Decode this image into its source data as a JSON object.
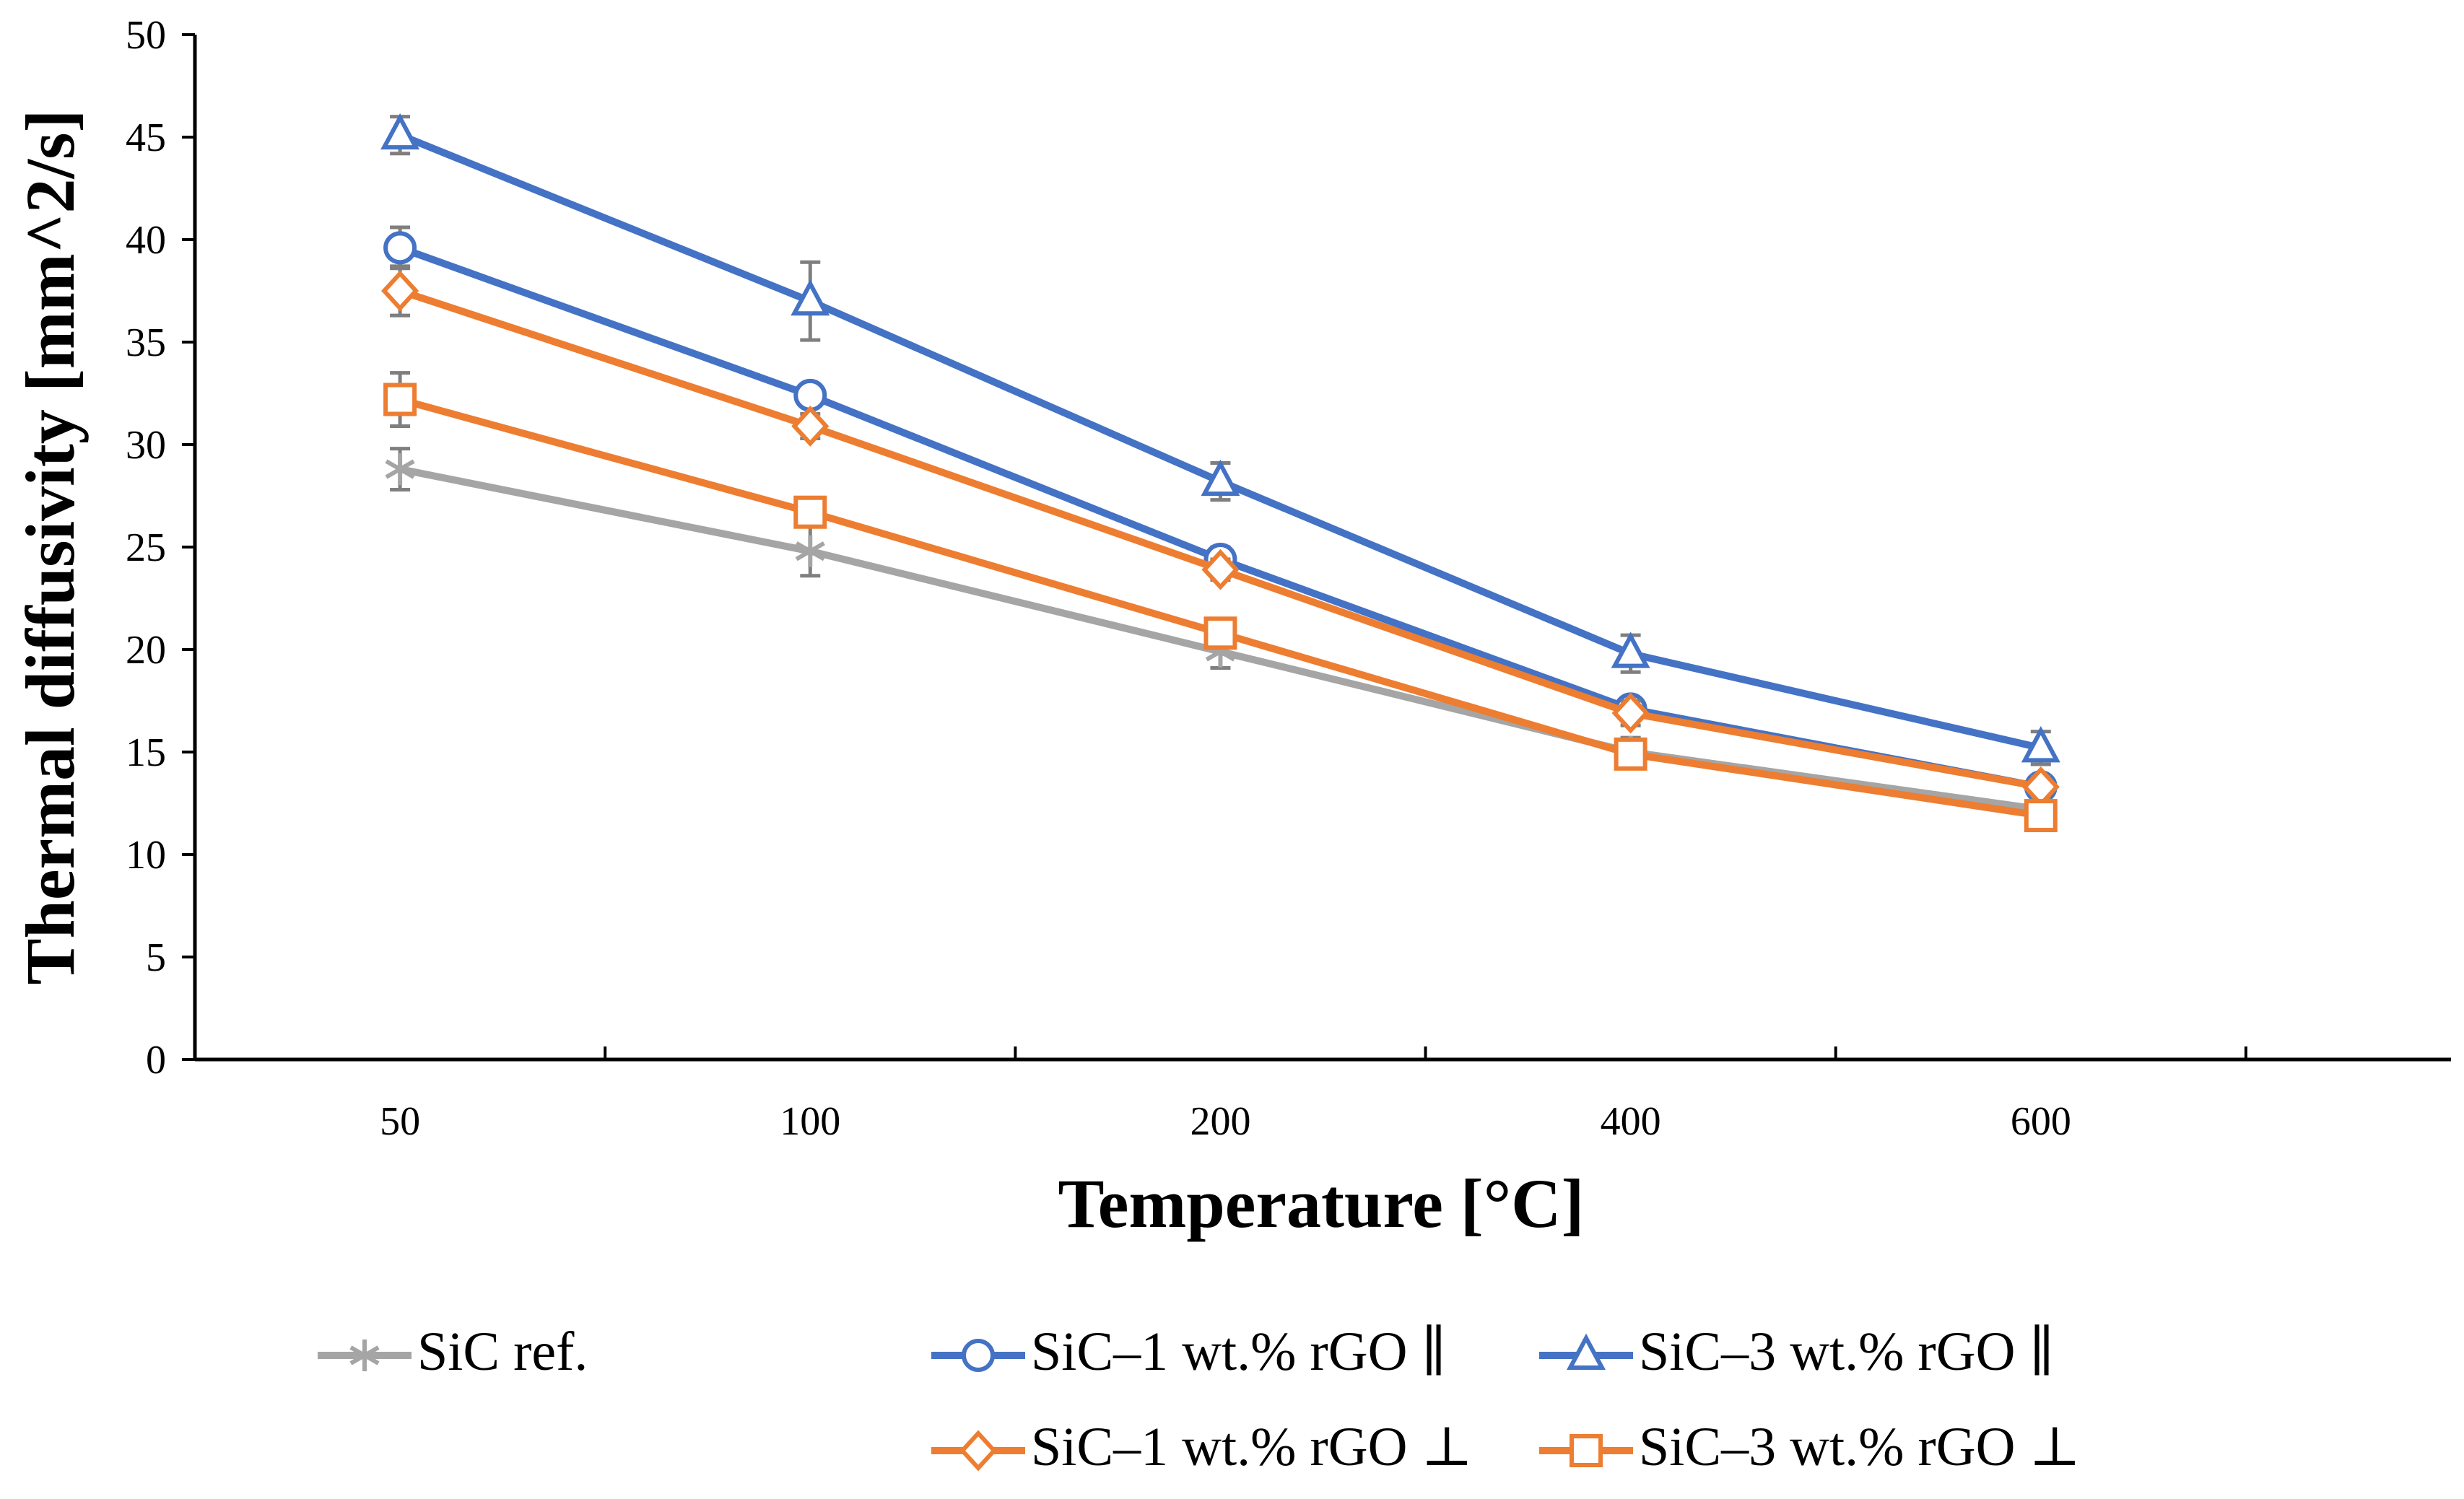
{
  "chart_data": {
    "type": "line",
    "title": "",
    "xlabel": "Temperature [°C]",
    "ylabel": "Thermal diffusivity [mm^2/s]",
    "categories": [
      "50",
      "100",
      "200",
      "400",
      "600"
    ],
    "ylim": [
      0,
      50
    ],
    "yticks": [
      "0",
      "5",
      "10",
      "15",
      "20",
      "25",
      "30",
      "35",
      "40",
      "45",
      "50"
    ],
    "grid": false,
    "legend_position": "bottom",
    "series": [
      {
        "name": "SiC ref.",
        "color": "#a5a5a5",
        "marker": "asterisk",
        "values": [
          28.8,
          24.8,
          19.9,
          15.0,
          12.2
        ],
        "errors": [
          1.0,
          1.2,
          0.8,
          0.7,
          0.5
        ]
      },
      {
        "name": "SiC–1 wt.% rGO ∥",
        "color": "#4472c4",
        "marker": "circle",
        "values": [
          39.6,
          32.4,
          24.4,
          17.1,
          13.3
        ],
        "errors": [
          1.0,
          0.5,
          0.6,
          0.5,
          0.5
        ]
      },
      {
        "name": "SiC–3 wt.% rGO ∥",
        "color": "#4472c4",
        "marker": "triangle",
        "values": [
          45.1,
          37.0,
          28.2,
          19.8,
          15.2
        ],
        "errors": [
          0.9,
          1.9,
          0.9,
          0.9,
          0.8
        ]
      },
      {
        "name": "SiC–1 wt.% rGO ⊥",
        "color": "#ed7d31",
        "marker": "diamond",
        "values": [
          37.5,
          30.9,
          23.9,
          16.9,
          13.3
        ],
        "errors": [
          1.2,
          0.6,
          0.5,
          0.6,
          0.5
        ]
      },
      {
        "name": "SiC–3 wt.% rGO ⊥",
        "color": "#ed7d31",
        "marker": "square",
        "values": [
          32.2,
          26.7,
          20.8,
          14.9,
          11.9
        ],
        "errors": [
          1.3,
          0.6,
          0.5,
          0.5,
          0.5
        ]
      }
    ]
  }
}
